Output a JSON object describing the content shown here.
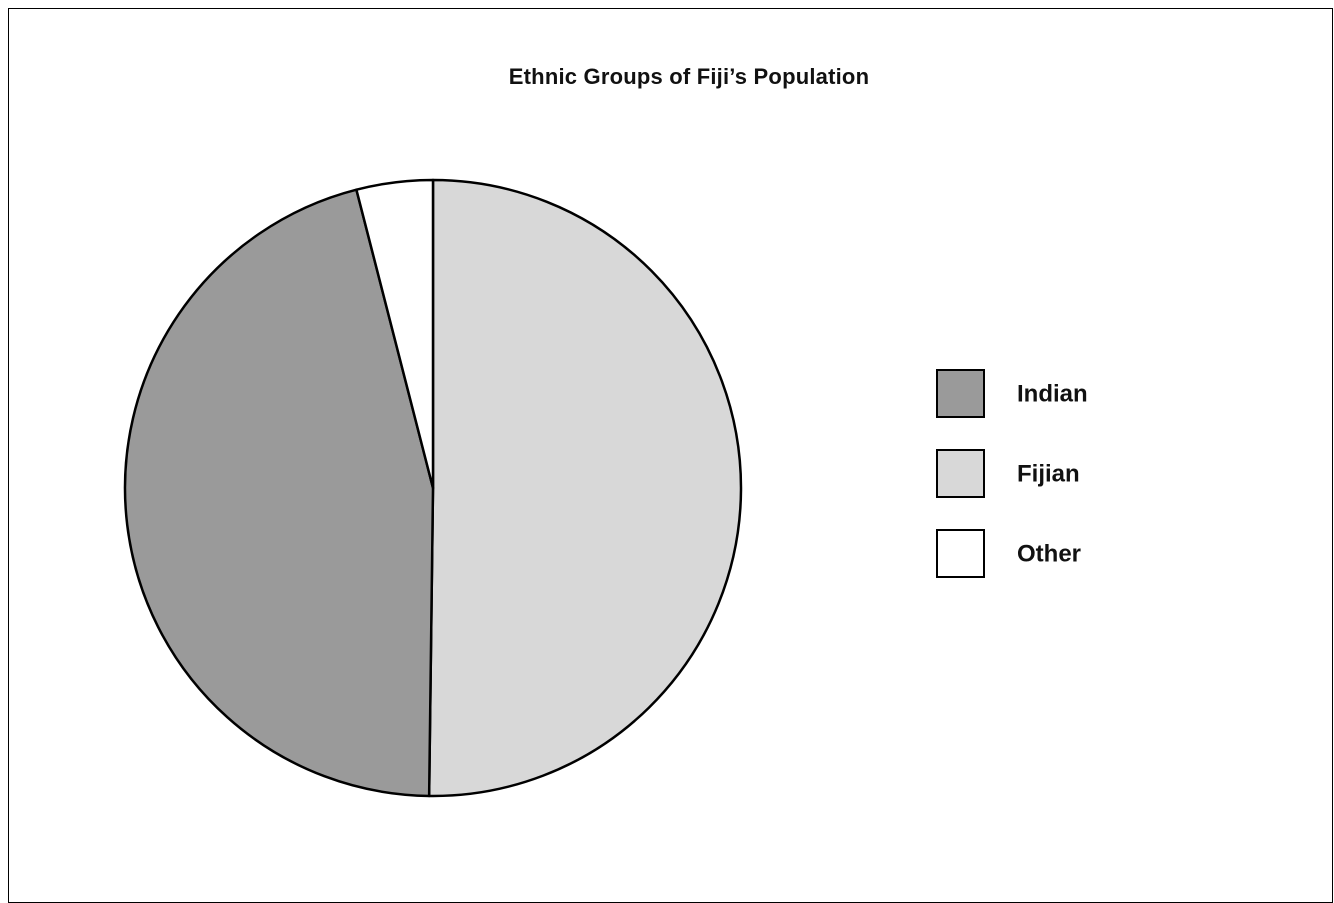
{
  "chart_data": {
    "type": "pie",
    "title": "Ethnic Groups of Fiji’s Population",
    "slices": [
      {
        "label": "Fijian",
        "value": 50.2,
        "color": "#d8d8d8"
      },
      {
        "label": "Indian",
        "value": 45.8,
        "color": "#9a9a9a"
      },
      {
        "label": "Other",
        "value": 4.0,
        "color": "#ffffff"
      }
    ],
    "legend": {
      "position": "right",
      "items": [
        {
          "label": "Indian",
          "color": "#9a9a9a"
        },
        {
          "label": "Fijian",
          "color": "#d8d8d8"
        },
        {
          "label": "Other",
          "color": "#ffffff"
        }
      ]
    }
  }
}
